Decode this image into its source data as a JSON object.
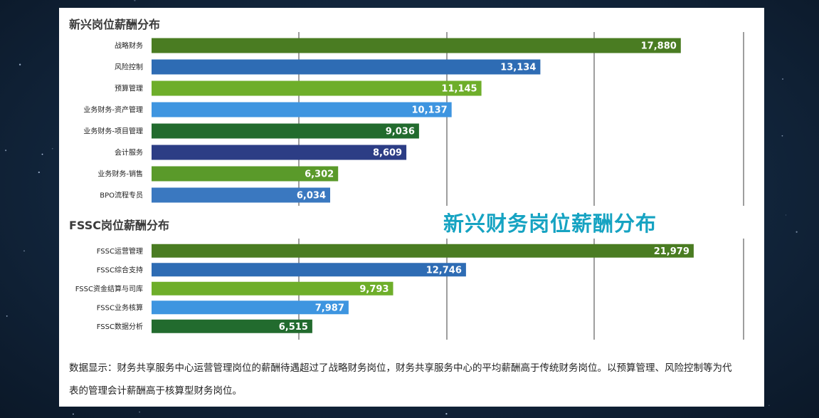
{
  "colors": {
    "dark_green": "#4a7c22",
    "blue": "#2e6cb4",
    "light_green": "#6eae2a",
    "light_blue": "#3e95e0",
    "forest_green": "#226b2e",
    "navy": "#2c3d85",
    "steel_blue": "#3a78c0",
    "overlay_title": "#16a3c2"
  },
  "overlay_title": "新兴财务岗位薪酬分布",
  "note": "数据显示：财务共享服务中心运营管理岗位的薪酬待遇超过了战略财务岗位，财务共享服务中心的平均薪酬高于传统财务岗位。以预算管理、风险控制等为代表的管理会计薪酬高于核算型财务岗位。",
  "chart_data": [
    {
      "type": "bar",
      "orientation": "horizontal",
      "title": "新兴岗位薪酬分布",
      "categories": [
        "战略财务",
        "风险控制",
        "预算管理",
        "业务财务-资产管理",
        "业务财务-项目管理",
        "会计服务",
        "业务财务-销售",
        "BPO流程专员"
      ],
      "values": [
        17880,
        13134,
        11145,
        10137,
        9036,
        8609,
        6302,
        6034
      ],
      "value_labels": [
        "17,880",
        "13,134",
        "11,145",
        "10,137",
        "9,036",
        "8,609",
        "6,302",
        "6,034"
      ],
      "bar_colors": [
        "#4a7c22",
        "#2e6cb4",
        "#6eae2a",
        "#3e95e0",
        "#226b2e",
        "#2c3d85",
        "#5a9a2a",
        "#3a78c0"
      ],
      "xlim": [
        0,
        20000
      ],
      "grid": true
    },
    {
      "type": "bar",
      "orientation": "horizontal",
      "title": "FSSC岗位薪酬分布",
      "categories": [
        "FSSC运营管理",
        "FSSC综合支持",
        "FSSC资金结算与司库",
        "FSSC业务核算",
        "FSSC数据分析"
      ],
      "values": [
        21979,
        12746,
        9793,
        7987,
        6515
      ],
      "value_labels": [
        "21,979",
        "12,746",
        "9,793",
        "7,987",
        "6,515"
      ],
      "bar_colors": [
        "#4a7c22",
        "#2e6cb4",
        "#6eae2a",
        "#3e95e0",
        "#226b2e"
      ],
      "xlim": [
        0,
        24000
      ],
      "grid": true
    }
  ]
}
